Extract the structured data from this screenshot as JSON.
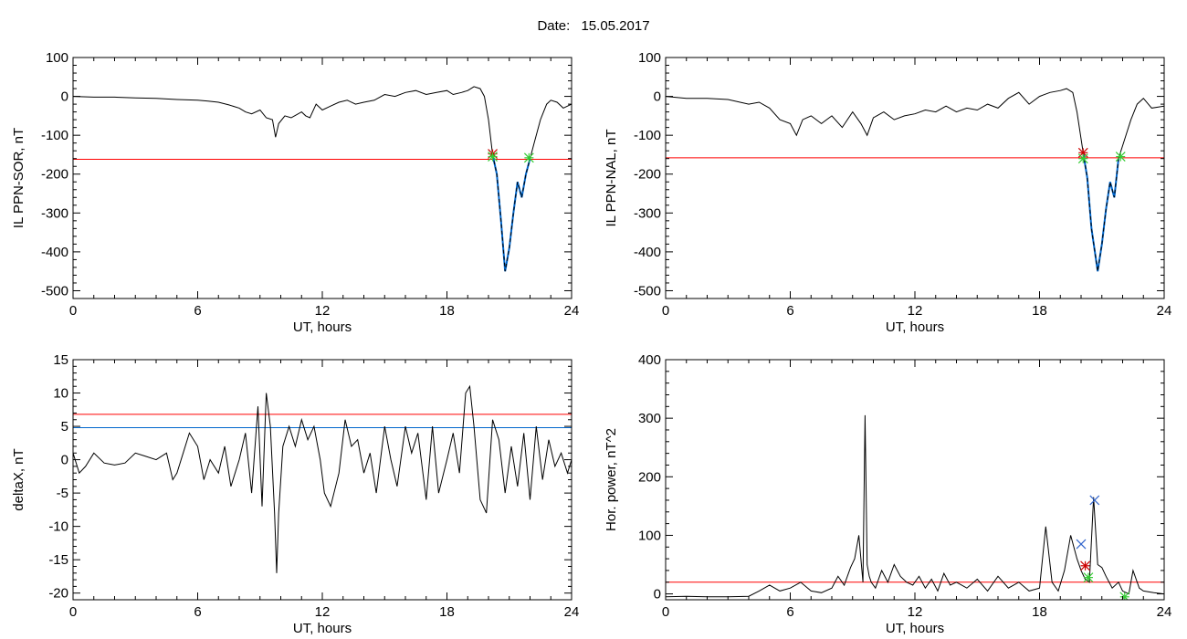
{
  "figure": {
    "date_label": "Date:",
    "date_value": "15.05.2017"
  },
  "colors": {
    "axes": "#000000",
    "trace": "#000000",
    "threshold_red": "#ff0000",
    "threshold_blue": "#0066cc",
    "marker_red": "#cc0000",
    "marker_green": "#33cc33",
    "marker_blue": "#3366cc"
  },
  "chart_data": [
    {
      "type": "line",
      "xlabel": "UT, hours",
      "ylabel": "IL PPN-SOR, nT",
      "xlim": [
        0,
        24
      ],
      "ylim": [
        -520,
        100
      ],
      "xticks": [
        0,
        6,
        12,
        18,
        24
      ],
      "yticks": [
        100,
        0,
        -100,
        -200,
        -300,
        -400,
        -500
      ],
      "series": [
        {
          "style": "black",
          "x": [
            0,
            1,
            2,
            3,
            4,
            5,
            6,
            6.5,
            7,
            7.5,
            8,
            8.3,
            8.6,
            9,
            9.3,
            9.6,
            9.75,
            9.9,
            10.2,
            10.5,
            11,
            11.2,
            11.4,
            11.7,
            12,
            12.4,
            12.8,
            13.2,
            13.6,
            14,
            14.5,
            15,
            15.5,
            16,
            16.5,
            17,
            17.5,
            18,
            18.3,
            18.7,
            19,
            19.3,
            19.6,
            19.8,
            20,
            20.2
          ],
          "values": [
            0,
            -2,
            -2,
            -4,
            -5,
            -8,
            -10,
            -12,
            -15,
            -22,
            -30,
            -40,
            -45,
            -35,
            -55,
            -60,
            -105,
            -70,
            -50,
            -55,
            -40,
            -50,
            -55,
            -20,
            -35,
            -25,
            -15,
            -10,
            -20,
            -15,
            -10,
            5,
            0,
            10,
            15,
            5,
            10,
            15,
            5,
            10,
            15,
            25,
            20,
            0,
            -60,
            -150
          ]
        },
        {
          "style": "blue-dashed",
          "x": [
            20.2,
            20.4,
            20.6,
            20.8,
            21.0,
            21.2,
            21.4,
            21.6,
            21.8,
            22.0
          ],
          "values": [
            -150,
            -200,
            -320,
            -450,
            -390,
            -300,
            -220,
            -260,
            -200,
            -160
          ]
        },
        {
          "style": "black",
          "x": [
            22.0,
            22.2,
            22.5,
            22.8,
            23.0,
            23.3,
            23.6,
            24
          ],
          "values": [
            -160,
            -120,
            -60,
            -20,
            -10,
            -15,
            -30,
            -20
          ]
        }
      ],
      "hlines": [
        {
          "y": -162,
          "color": "red"
        }
      ],
      "markers": [
        {
          "x": 20.2,
          "y": -148,
          "symbol": "asterisk",
          "color": "red"
        },
        {
          "x": 20.2,
          "y": -155,
          "symbol": "asterisk",
          "color": "green"
        },
        {
          "x": 21.95,
          "y": -158,
          "symbol": "asterisk",
          "color": "green"
        }
      ]
    },
    {
      "type": "line",
      "xlabel": "UT, hours",
      "ylabel": "IL PPN-NAL, nT",
      "xlim": [
        0,
        24
      ],
      "ylim": [
        -520,
        100
      ],
      "xticks": [
        0,
        6,
        12,
        18,
        24
      ],
      "yticks": [
        100,
        0,
        -100,
        -200,
        -300,
        -400,
        -500
      ],
      "series": [
        {
          "style": "black",
          "x": [
            0,
            1,
            2,
            3,
            4,
            4.5,
            5,
            5.5,
            6,
            6.3,
            6.6,
            7,
            7.5,
            8,
            8.5,
            9,
            9.4,
            9.7,
            10,
            10.5,
            11,
            11.5,
            12,
            12.5,
            13,
            13.5,
            14,
            14.5,
            15,
            15.5,
            16,
            16.5,
            17,
            17.5,
            18,
            18.5,
            19,
            19.3,
            19.6,
            19.8,
            20.1
          ],
          "values": [
            0,
            -5,
            -5,
            -8,
            -20,
            -15,
            -30,
            -60,
            -70,
            -100,
            -60,
            -50,
            -70,
            -50,
            -80,
            -40,
            -70,
            -100,
            -55,
            -40,
            -60,
            -50,
            -45,
            -35,
            -40,
            -25,
            -40,
            -30,
            -35,
            -20,
            -30,
            -5,
            10,
            -20,
            0,
            10,
            15,
            20,
            10,
            -40,
            -145
          ]
        },
        {
          "style": "blue-dashed",
          "x": [
            20.1,
            20.3,
            20.5,
            20.8,
            21.0,
            21.2,
            21.4,
            21.6,
            21.8
          ],
          "values": [
            -145,
            -210,
            -340,
            -450,
            -380,
            -290,
            -220,
            -260,
            -160
          ]
        },
        {
          "style": "black",
          "x": [
            21.8,
            22.1,
            22.4,
            22.7,
            23.0,
            23.4,
            24
          ],
          "values": [
            -160,
            -110,
            -60,
            -20,
            -5,
            -30,
            -25
          ]
        }
      ],
      "hlines": [
        {
          "y": -158,
          "color": "red"
        }
      ],
      "markers": [
        {
          "x": 20.1,
          "y": -145,
          "symbol": "asterisk",
          "color": "red"
        },
        {
          "x": 20.1,
          "y": -160,
          "symbol": "asterisk",
          "color": "green"
        },
        {
          "x": 21.9,
          "y": -155,
          "symbol": "asterisk",
          "color": "green"
        }
      ]
    },
    {
      "type": "line",
      "xlabel": "UT, hours",
      "ylabel": "deltaX, nT",
      "xlim": [
        0,
        24
      ],
      "ylim": [
        -21,
        15
      ],
      "xticks": [
        0,
        6,
        12,
        18,
        24
      ],
      "yticks": [
        15,
        10,
        5,
        0,
        -5,
        -10,
        -15,
        -20
      ],
      "series": [
        {
          "style": "black",
          "x": [
            0,
            0.3,
            0.6,
            1,
            1.5,
            2,
            2.5,
            3,
            3.5,
            4,
            4.5,
            4.8,
            5,
            5.3,
            5.6,
            6,
            6.3,
            6.6,
            7,
            7.3,
            7.6,
            8,
            8.3,
            8.6,
            8.9,
            9.1,
            9.3,
            9.5,
            9.7,
            9.8,
            9.9,
            10.1,
            10.4,
            10.7,
            11,
            11.3,
            11.6,
            11.9,
            12.1,
            12.4,
            12.8,
            13.1,
            13.4,
            13.7,
            14,
            14.3,
            14.6,
            15,
            15.3,
            15.6,
            16,
            16.3,
            16.6,
            17,
            17.3,
            17.6,
            18,
            18.3,
            18.6,
            18.9,
            19.1,
            19.3,
            19.6,
            19.9,
            20.2,
            20.5,
            20.8,
            21.1,
            21.4,
            21.7,
            22,
            22.3,
            22.6,
            22.9,
            23.2,
            23.5,
            23.8,
            24
          ],
          "values": [
            1,
            -2,
            -1,
            1,
            -0.5,
            -0.8,
            -0.5,
            1,
            0.5,
            0,
            1,
            -3,
            -2,
            1,
            4,
            2,
            -3,
            0,
            -2,
            2,
            -4,
            0,
            4,
            -5,
            8,
            -7,
            10,
            5,
            -8,
            -17,
            -8,
            2,
            5,
            2,
            6,
            3,
            5,
            0,
            -5,
            -7,
            -2,
            6,
            2,
            3,
            -2,
            1,
            -5,
            5,
            0,
            -4,
            5,
            1,
            4,
            -6,
            5,
            -5,
            0,
            4,
            -2,
            10,
            11,
            5,
            -6,
            -8,
            6,
            3,
            -5,
            2,
            -4,
            4,
            -6,
            5,
            -3,
            3,
            -1,
            1,
            -2,
            0
          ]
        }
      ],
      "hlines": [
        {
          "y": 6.8,
          "color": "red"
        },
        {
          "y": 4.8,
          "color": "blue"
        }
      ],
      "markers": []
    },
    {
      "type": "line",
      "xlabel": "UT, hours",
      "ylabel": "Hor. power, nT^2",
      "xlim": [
        0,
        24
      ],
      "ylim": [
        -10,
        400
      ],
      "xticks": [
        0,
        6,
        12,
        18,
        24
      ],
      "yticks": [
        400,
        300,
        200,
        100,
        0
      ],
      "series": [
        {
          "style": "black",
          "x": [
            0,
            1,
            2,
            3,
            4,
            4.5,
            5,
            5.5,
            6,
            6.5,
            7,
            7.5,
            8,
            8.3,
            8.6,
            8.9,
            9.1,
            9.3,
            9.5,
            9.6,
            9.7,
            9.8,
            9.9,
            10.1,
            10.4,
            10.7,
            11,
            11.3,
            11.6,
            11.9,
            12.2,
            12.5,
            12.8,
            13.1,
            13.4,
            13.7,
            14,
            14.5,
            15,
            15.5,
            16,
            16.5,
            17,
            17.5,
            18,
            18.3,
            18.6,
            18.9,
            19.2,
            19.5,
            19.8,
            20,
            20.2,
            20.4,
            20.6,
            20.8,
            21,
            21.2,
            21.5,
            21.8,
            22,
            22.3,
            22.5,
            22.8,
            23,
            23.5,
            24
          ],
          "values": [
            -5,
            -4,
            -5,
            -5,
            -4,
            5,
            15,
            5,
            10,
            20,
            5,
            2,
            10,
            30,
            15,
            45,
            60,
            100,
            20,
            305,
            50,
            30,
            20,
            10,
            40,
            20,
            50,
            30,
            20,
            15,
            30,
            10,
            25,
            5,
            35,
            15,
            20,
            10,
            25,
            5,
            30,
            10,
            20,
            5,
            10,
            115,
            20,
            5,
            40,
            100,
            60,
            40,
            25,
            20,
            165,
            50,
            45,
            30,
            10,
            20,
            5,
            0,
            40,
            10,
            5,
            2,
            0
          ]
        }
      ],
      "hlines": [
        {
          "y": 20,
          "color": "red"
        }
      ],
      "markers": [
        {
          "x": 20.0,
          "y": 85,
          "symbol": "cross",
          "color": "blue"
        },
        {
          "x": 20.2,
          "y": 48,
          "symbol": "asterisk",
          "color": "red"
        },
        {
          "x": 20.35,
          "y": 28,
          "symbol": "asterisk",
          "color": "green"
        },
        {
          "x": 20.65,
          "y": 160,
          "symbol": "cross",
          "color": "blue"
        },
        {
          "x": 22.1,
          "y": -5,
          "symbol": "asterisk",
          "color": "green"
        }
      ]
    }
  ]
}
